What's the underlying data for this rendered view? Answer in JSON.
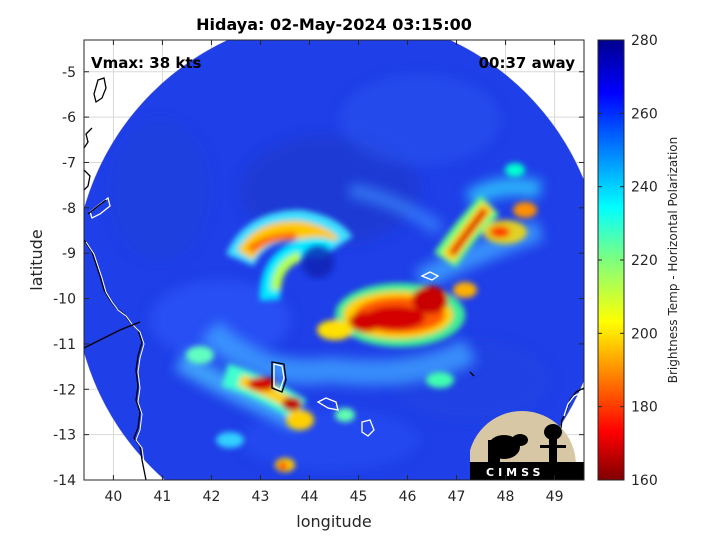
{
  "chart_data": {
    "type": "heatmap",
    "title": "Hidaya: 02-May-2024 03:15:00",
    "annotations": {
      "vmax": "Vmax: 38 kts",
      "time_away": "00:37 away"
    },
    "xlabel": "longitude",
    "ylabel": "latitude",
    "xlim": [
      39.4,
      49.6
    ],
    "ylim": [
      -14,
      -4.3
    ],
    "x_ticks": [
      40,
      41,
      42,
      43,
      44,
      45,
      46,
      47,
      48,
      49
    ],
    "y_ticks": [
      -5,
      -6,
      -7,
      -8,
      -9,
      -10,
      -11,
      -12,
      -13,
      -14
    ],
    "colorbar": {
      "label": "Brightness Temp - Horizontal Polarization",
      "range": [
        160,
        280
      ],
      "ticks": [
        280,
        260,
        240,
        220,
        200,
        180,
        160
      ],
      "colormap": "jet",
      "colors": [
        "#7f0000",
        "#ff0000",
        "#ffff00",
        "#00ffff",
        "#0000ff",
        "#00008f"
      ]
    },
    "swath": {
      "center_lon": 44.6,
      "center_lat": -9.6,
      "radius_deg": 5.4,
      "background_value": 265
    },
    "features": [
      {
        "label": "outer band arc",
        "lon": 43.2,
        "lat": -9.1,
        "value": 195
      },
      {
        "label": "inner eyewall arc",
        "lon": 44.3,
        "lat": -8.7,
        "value": 240
      },
      {
        "label": "main convective core",
        "lon": 45.9,
        "lat": -10.2,
        "value": 170
      },
      {
        "label": "northeast band",
        "lon": 47.2,
        "lat": -8.7,
        "value": 178
      },
      {
        "label": "southwest band",
        "lon": 43.3,
        "lat": -12.1,
        "value": 172
      },
      {
        "label": "south cells",
        "lon": 43.5,
        "lat": -13.7,
        "value": 205
      }
    ],
    "logo": {
      "text": "CIMSS"
    }
  }
}
